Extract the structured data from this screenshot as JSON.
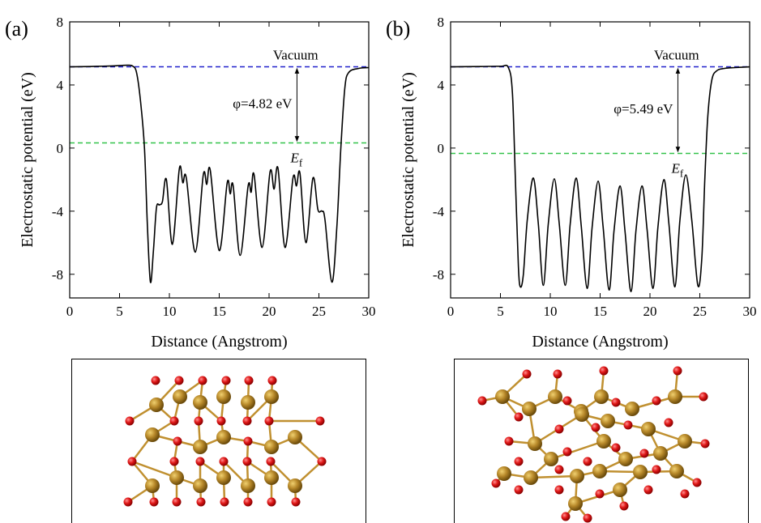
{
  "chart_data": [
    {
      "type": "line",
      "panel_label": "(a)",
      "xlabel": "Distance (Angstrom)",
      "ylabel": "Electrostatic potential (eV)",
      "xlim": [
        0,
        30
      ],
      "ylim": [
        -9.5,
        8
      ],
      "xticks": [
        0,
        5,
        10,
        15,
        20,
        25,
        30
      ],
      "yticks": [
        -8,
        -4,
        0,
        4,
        8
      ],
      "x": [
        0,
        2,
        4,
        5,
        5.8,
        6.3,
        6.7,
        7.1,
        7.5,
        7.8,
        8.1,
        8.4,
        8.7,
        9.0,
        9.3,
        9.7,
        10.3,
        11.0,
        11.35,
        11.7,
        12.6,
        13.4,
        13.75,
        14.1,
        15.0,
        15.8,
        16.1,
        16.4,
        17.1,
        17.9,
        18.2,
        18.5,
        19.3,
        20.1,
        20.5,
        20.9,
        21.6,
        22.4,
        22.75,
        23.1,
        23.7,
        24.4,
        24.9,
        25.3,
        25.6,
        26.3,
        26.8,
        27.2,
        27.6,
        28.0,
        29,
        30
      ],
      "series": [
        {
          "color": "#000000",
          "values": [
            5.15,
            5.17,
            5.2,
            5.23,
            5.25,
            5.2,
            4.8,
            3.0,
            0,
            -5,
            -8.5,
            -6.5,
            -3.8,
            -3.6,
            -3.4,
            -2.0,
            -6.1,
            -1.3,
            -2.2,
            -1.9,
            -6.6,
            -1.7,
            -2.3,
            -1.4,
            -6.5,
            -2.2,
            -2.9,
            -2.4,
            -6.8,
            -2.4,
            -2.8,
            -1.7,
            -6.3,
            -1.5,
            -2.6,
            -1.3,
            -6.3,
            -1.9,
            -2.4,
            -1.6,
            -6.0,
            -1.9,
            -3.9,
            -4.0,
            -4.5,
            -8.5,
            -5,
            0,
            3.8,
            4.8,
            5.05,
            5.1
          ]
        }
      ],
      "hlines": [
        {
          "value": 5.15,
          "color": "#1f1fcc"
        },
        {
          "value": 0.33,
          "color": "#33c24a"
        }
      ],
      "vacuum_label": "Vacuum",
      "work_function_label": "φ=4.82 eV",
      "fermi_symbol": "E",
      "fermi_subscript": "f"
    },
    {
      "type": "line",
      "panel_label": "(b)",
      "xlabel": "Distance (Angstrom)",
      "ylabel": "Electrostatic potential (eV)",
      "xlim": [
        0,
        30
      ],
      "ylim": [
        -9.5,
        8
      ],
      "xticks": [
        0,
        5,
        10,
        15,
        20,
        25,
        30
      ],
      "yticks": [
        -8,
        -4,
        0,
        4,
        8
      ],
      "x": [
        0,
        3,
        5,
        5.8,
        6.2,
        6.5,
        6.8,
        7.0,
        7.3,
        7.7,
        8.3,
        8.8,
        9.3,
        9.8,
        10.4,
        10.9,
        11.5,
        12.0,
        12.6,
        13.1,
        13.7,
        14.2,
        14.8,
        15.3,
        15.9,
        16.4,
        17.0,
        17.5,
        18.1,
        18.6,
        19.2,
        19.7,
        20.3,
        20.8,
        21.4,
        21.9,
        22.5,
        23.0,
        23.6,
        24.2,
        24.8,
        25.2,
        25.5,
        25.8,
        26.2,
        26.7,
        27.5,
        28.5,
        30
      ],
      "series": [
        {
          "color": "#000000",
          "values": [
            5.15,
            5.17,
            5.18,
            5.1,
            3.5,
            -2,
            -7.5,
            -8.8,
            -8.0,
            -4.5,
            -1.9,
            -4.8,
            -8.7,
            -4.8,
            -1.95,
            -4.8,
            -8.7,
            -4.8,
            -1.9,
            -4.9,
            -8.9,
            -5.0,
            -2.1,
            -5.0,
            -9.0,
            -5.2,
            -2.4,
            -5.3,
            -9.1,
            -5.2,
            -2.4,
            -5.1,
            -8.9,
            -5.0,
            -2.0,
            -4.8,
            -8.8,
            -4.6,
            -1.7,
            -4.6,
            -8.7,
            -7.0,
            -2.0,
            2.0,
            4.3,
            4.9,
            5.05,
            5.1,
            5.15
          ]
        }
      ],
      "hlines": [
        {
          "value": 5.15,
          "color": "#1f1fcc"
        },
        {
          "value": -0.34,
          "color": "#33c24a"
        }
      ],
      "vacuum_label": "Vacuum",
      "work_function_label": "φ=5.49 eV",
      "fermi_symbol": "E",
      "fermi_subscript": "f"
    }
  ]
}
